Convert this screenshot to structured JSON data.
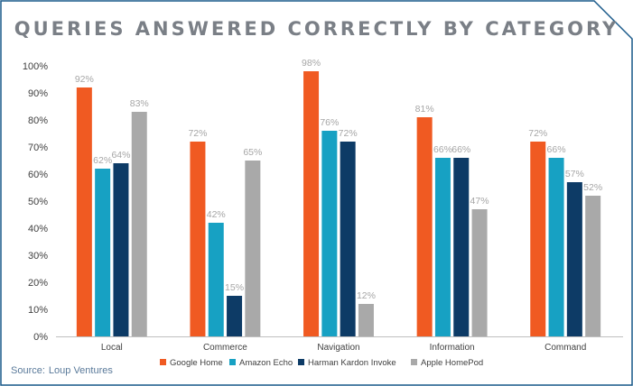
{
  "chart_data": {
    "type": "bar",
    "title": "QUERIES ANSWERED CORRECTLY BY CATEGORY",
    "categories": [
      "Local",
      "Commerce",
      "Navigation",
      "Information",
      "Command"
    ],
    "series": [
      {
        "name": "Google Home",
        "color": "#f05a22",
        "values": [
          92,
          72,
          98,
          81,
          72
        ]
      },
      {
        "name": "Amazon Echo",
        "color": "#17a1c3",
        "values": [
          62,
          42,
          76,
          66,
          66
        ]
      },
      {
        "name": "Harman Kardon Invoke",
        "color": "#0d3b66",
        "values": [
          64,
          15,
          72,
          66,
          57
        ]
      },
      {
        "name": "Apple HomePod",
        "color": "#a9a9a9",
        "values": [
          83,
          65,
          12,
          47,
          52
        ]
      }
    ],
    "data_labels": [
      [
        "92%",
        "72%",
        "98%",
        "81%",
        "72%"
      ],
      [
        "62%",
        "42%",
        "76%",
        "66%",
        "66%"
      ],
      [
        "64%",
        "15%",
        "72%",
        "66%",
        "57%"
      ],
      [
        "83%",
        "65%",
        "12%",
        "47%",
        "52%"
      ]
    ],
    "yticks": [
      "0%",
      "10%",
      "20%",
      "30%",
      "40%",
      "50%",
      "60%",
      "70%",
      "80%",
      "90%",
      "100%"
    ],
    "ylim": [
      0,
      100
    ],
    "xlabel": "",
    "ylabel": "",
    "legend_position": "bottom",
    "grid": false
  },
  "source": {
    "label": "Source:",
    "value": "Loup Ventures"
  },
  "colors": {
    "frame": "#1a5a8a",
    "axis": "#bfbfbf",
    "tick_text": "#404040",
    "data_label": "#a6a6a6"
  }
}
